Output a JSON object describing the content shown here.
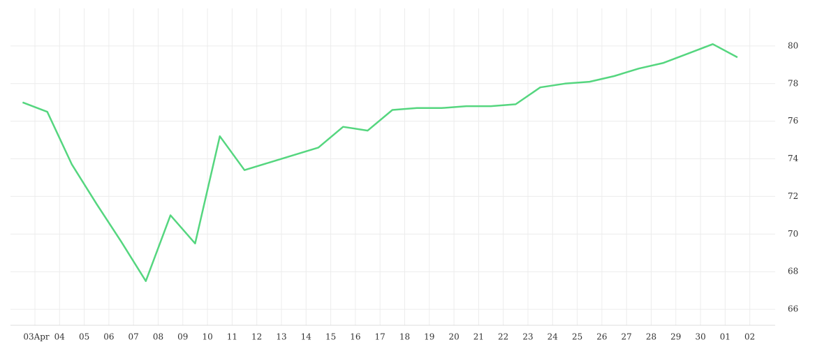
{
  "chart_data": {
    "type": "line",
    "categories": [
      "03Apr",
      "04",
      "05",
      "06",
      "07",
      "08",
      "09",
      "10",
      "11",
      "12",
      "13",
      "14",
      "15",
      "16",
      "17",
      "18",
      "19",
      "20",
      "21",
      "22",
      "23",
      "24",
      "25",
      "26",
      "27",
      "28",
      "29",
      "30",
      "01",
      "02"
    ],
    "series": [
      {
        "color": "#55d67f",
        "values": [
          77.0,
          76.5,
          73.7,
          71.6,
          69.6,
          67.5,
          71.0,
          69.5,
          75.2,
          73.4,
          73.8,
          74.2,
          74.6,
          75.7,
          75.5,
          76.6,
          76.7,
          76.7,
          76.8,
          76.8,
          76.9,
          77.8,
          78.0,
          78.1,
          78.4,
          78.8,
          79.1,
          79.6,
          80.1,
          79.4
        ]
      }
    ],
    "ylim": [
      65.15,
      82.0
    ],
    "yticks": [
      66,
      68,
      70,
      72,
      74,
      76,
      78,
      80
    ],
    "grid": true
  }
}
